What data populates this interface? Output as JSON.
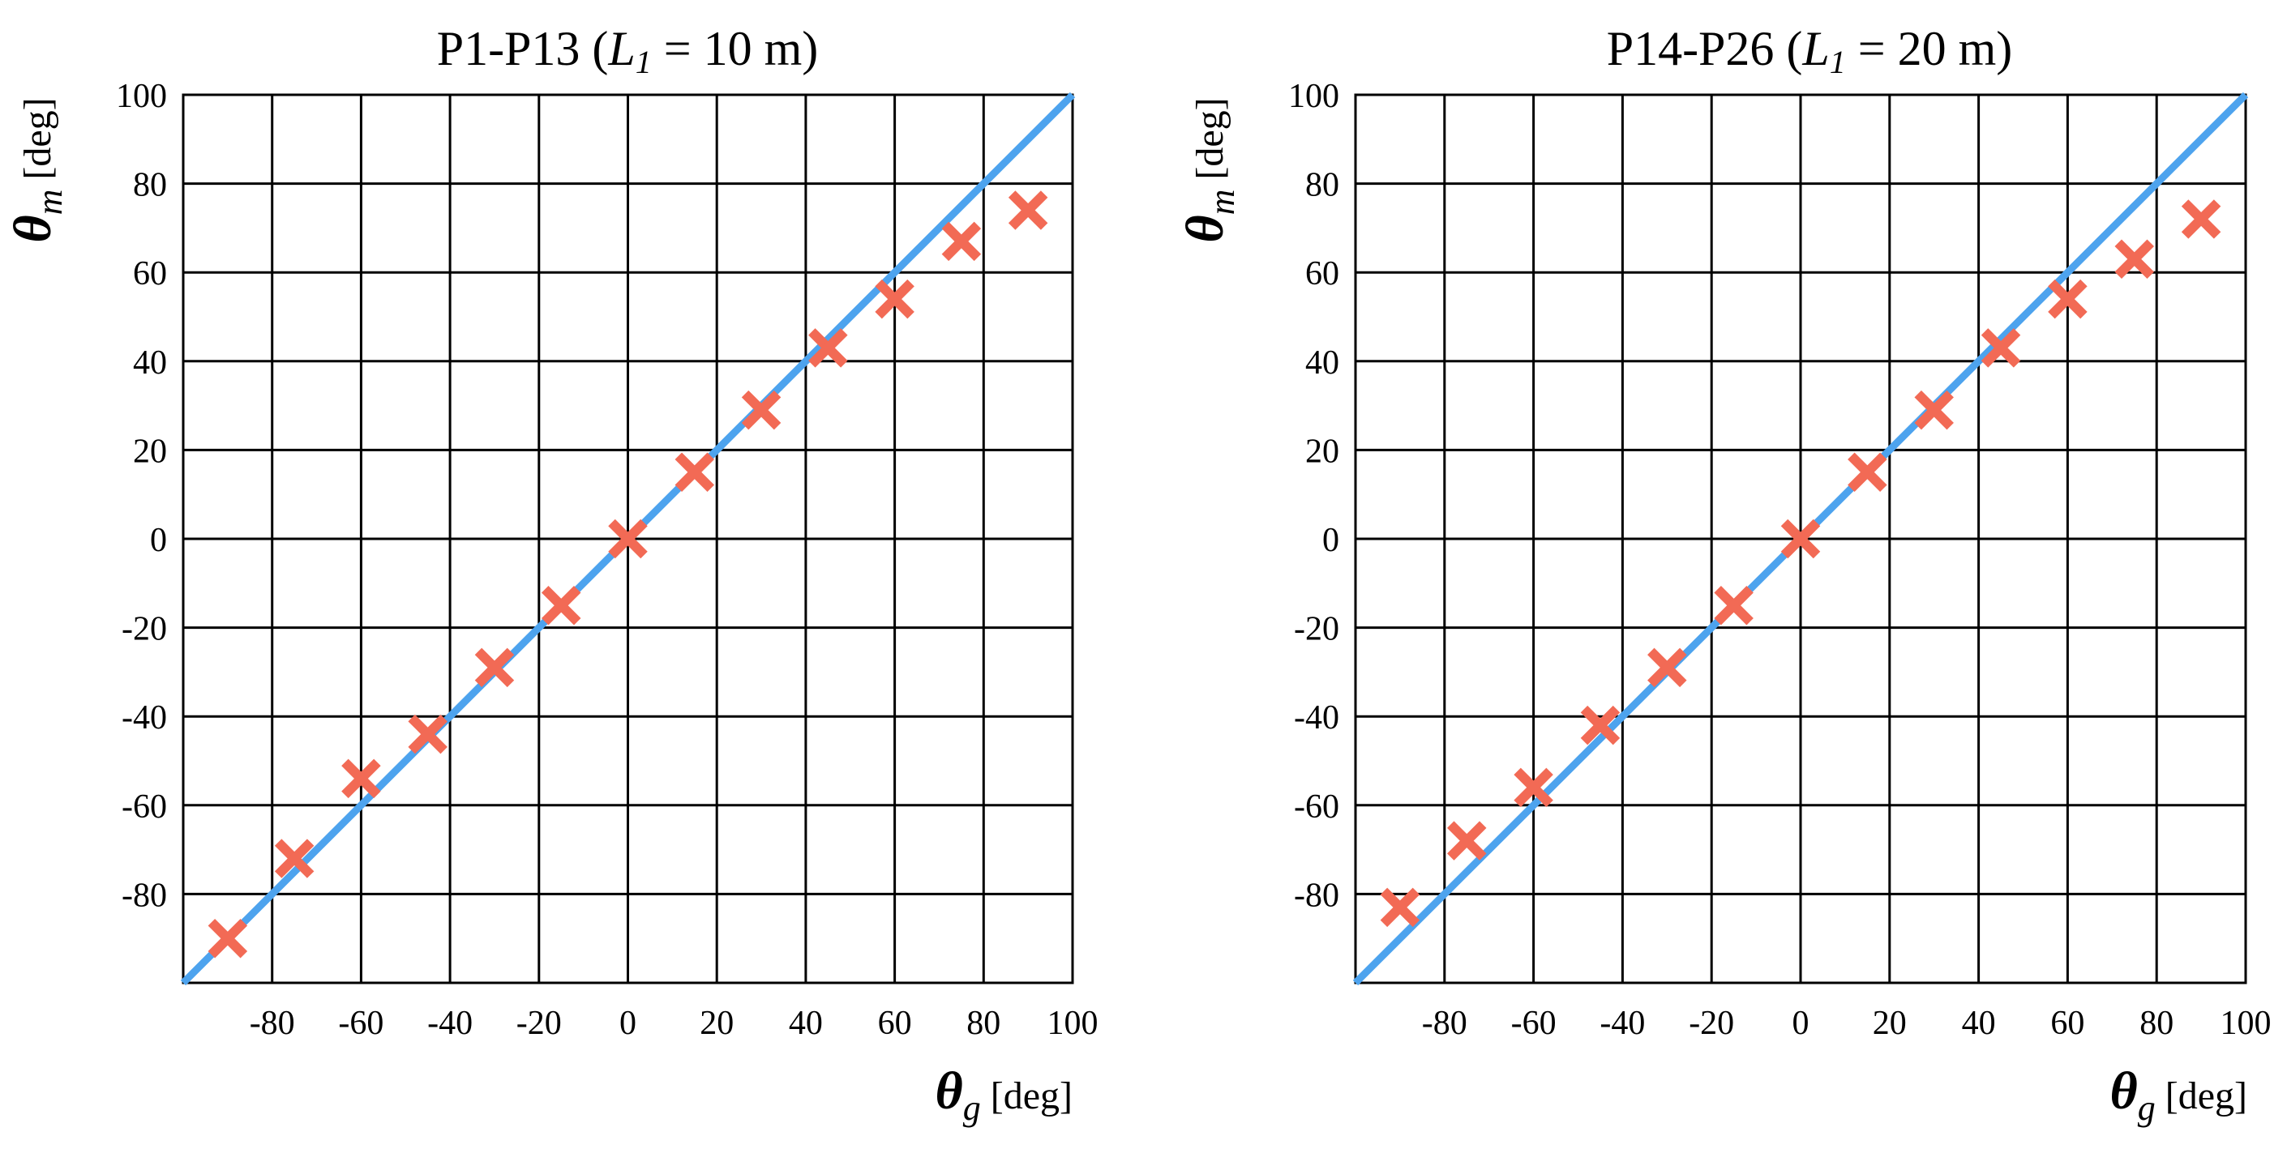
{
  "chart_data": [
    {
      "type": "scatter",
      "title_prefix": "P1-P13 (",
      "title_var": "L",
      "title_var_sub": "1",
      "title_suffix": " = 10 m)",
      "x_symbol": "θ",
      "x_subscript": "g",
      "x_unit": "[deg]",
      "y_symbol": "θ",
      "y_subscript": "m",
      "y_unit": "[deg]",
      "xlim": [
        -100,
        100
      ],
      "ylim": [
        -100,
        100
      ],
      "x_tick_labels": [
        "-80",
        "-60",
        "-40",
        "-20",
        "0",
        "20",
        "40",
        "60",
        "80",
        "100"
      ],
      "y_tick_labels": [
        "100",
        "80",
        "60",
        "40",
        "20",
        "0",
        "-20",
        "-40",
        "-60",
        "-80"
      ],
      "grid": true,
      "reference_line": {
        "name": "θm = θg",
        "x": [
          -100,
          100
        ],
        "y": [
          -100,
          100
        ],
        "color": "#4da3ee"
      },
      "series": [
        {
          "name": "measured",
          "marker": "x",
          "color": "#f26a55",
          "x": [
            -90,
            -75,
            -60,
            -45,
            -30,
            -15,
            0,
            15,
            30,
            45,
            60,
            75,
            90
          ],
          "y": [
            -90,
            -72,
            -54,
            -44,
            -29,
            -15,
            0,
            15,
            29,
            43,
            54,
            67,
            74
          ]
        }
      ]
    },
    {
      "type": "scatter",
      "title_prefix": "P14-P26 (",
      "title_var": "L",
      "title_var_sub": "1",
      "title_suffix": " = 20 m)",
      "x_symbol": "θ",
      "x_subscript": "g",
      "x_unit": "[deg]",
      "y_symbol": "θ",
      "y_subscript": "m",
      "y_unit": "[deg]",
      "xlim": [
        -100,
        100
      ],
      "ylim": [
        -100,
        100
      ],
      "x_tick_labels": [
        "-80",
        "-60",
        "-40",
        "-20",
        "0",
        "20",
        "40",
        "60",
        "80",
        "100"
      ],
      "y_tick_labels": [
        "100",
        "80",
        "60",
        "40",
        "20",
        "0",
        "-20",
        "-40",
        "-60",
        "-80"
      ],
      "grid": true,
      "reference_line": {
        "name": "θm = θg",
        "x": [
          -100,
          100
        ],
        "y": [
          -100,
          100
        ],
        "color": "#4da3ee"
      },
      "series": [
        {
          "name": "measured",
          "marker": "x",
          "color": "#f26a55",
          "x": [
            -90,
            -75,
            -60,
            -45,
            -30,
            -15,
            0,
            15,
            30,
            45,
            60,
            75,
            90
          ],
          "y": [
            -83,
            -68,
            -56,
            -42,
            -29,
            -15,
            0,
            15,
            29,
            43,
            54,
            63,
            72
          ]
        }
      ]
    }
  ]
}
